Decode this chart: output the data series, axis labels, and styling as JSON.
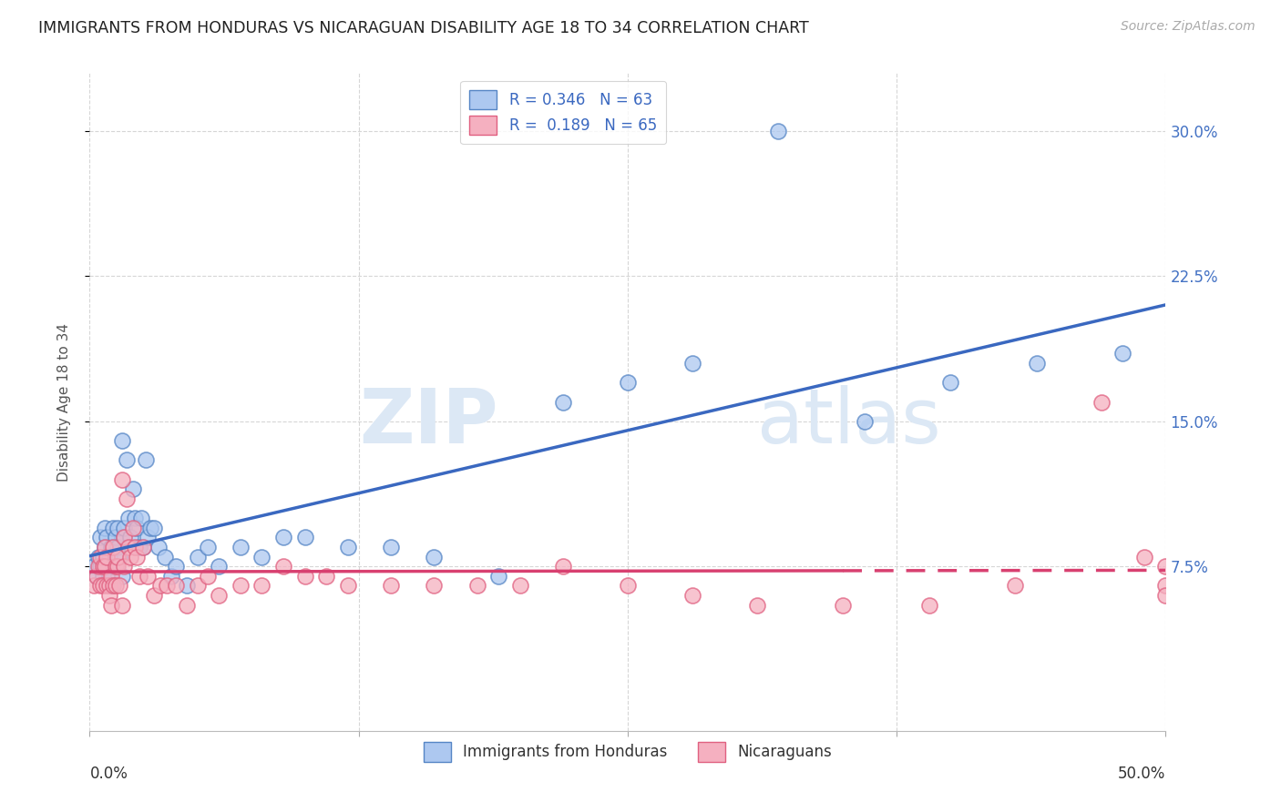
{
  "title": "IMMIGRANTS FROM HONDURAS VS NICARAGUAN DISABILITY AGE 18 TO 34 CORRELATION CHART",
  "source": "Source: ZipAtlas.com",
  "ylabel": "Disability Age 18 to 34",
  "xlim": [
    0.0,
    0.5
  ],
  "ylim": [
    -0.01,
    0.33
  ],
  "yticks": [
    0.075,
    0.15,
    0.225,
    0.3
  ],
  "ytick_labels": [
    "7.5%",
    "15.0%",
    "22.5%",
    "30.0%"
  ],
  "series1_name": "Immigrants from Honduras",
  "series1_R": "0.346",
  "series1_N": "63",
  "series1_color": "#adc8f0",
  "series1_edge_color": "#5585c5",
  "series1_line_color": "#3a68c0",
  "series2_name": "Nicaraguans",
  "series2_R": "0.189",
  "series2_N": "65",
  "series2_color": "#f5b0c0",
  "series2_edge_color": "#e06080",
  "series2_line_color": "#d84070",
  "background_color": "#ffffff",
  "grid_color": "#cccccc",
  "honduras_x": [
    0.002,
    0.003,
    0.004,
    0.005,
    0.005,
    0.006,
    0.006,
    0.007,
    0.007,
    0.008,
    0.008,
    0.009,
    0.009,
    0.01,
    0.01,
    0.011,
    0.011,
    0.012,
    0.012,
    0.013,
    0.013,
    0.014,
    0.015,
    0.015,
    0.016,
    0.016,
    0.017,
    0.018,
    0.019,
    0.02,
    0.021,
    0.022,
    0.023,
    0.024,
    0.025,
    0.026,
    0.027,
    0.028,
    0.03,
    0.032,
    0.035,
    0.038,
    0.04,
    0.045,
    0.05,
    0.055,
    0.06,
    0.07,
    0.08,
    0.09,
    0.1,
    0.12,
    0.14,
    0.16,
    0.19,
    0.22,
    0.25,
    0.28,
    0.32,
    0.36,
    0.4,
    0.44,
    0.48
  ],
  "honduras_y": [
    0.075,
    0.07,
    0.08,
    0.09,
    0.075,
    0.08,
    0.07,
    0.095,
    0.085,
    0.075,
    0.09,
    0.08,
    0.07,
    0.085,
    0.065,
    0.075,
    0.095,
    0.09,
    0.075,
    0.085,
    0.095,
    0.08,
    0.14,
    0.07,
    0.09,
    0.095,
    0.13,
    0.1,
    0.09,
    0.115,
    0.1,
    0.095,
    0.085,
    0.1,
    0.085,
    0.13,
    0.09,
    0.095,
    0.095,
    0.085,
    0.08,
    0.07,
    0.075,
    0.065,
    0.08,
    0.085,
    0.075,
    0.085,
    0.08,
    0.09,
    0.09,
    0.085,
    0.085,
    0.08,
    0.07,
    0.16,
    0.17,
    0.18,
    0.3,
    0.15,
    0.17,
    0.18,
    0.185
  ],
  "nicaragua_x": [
    0.002,
    0.003,
    0.004,
    0.005,
    0.005,
    0.006,
    0.006,
    0.007,
    0.007,
    0.008,
    0.008,
    0.009,
    0.009,
    0.01,
    0.01,
    0.011,
    0.011,
    0.012,
    0.012,
    0.013,
    0.013,
    0.014,
    0.015,
    0.015,
    0.016,
    0.016,
    0.017,
    0.018,
    0.019,
    0.02,
    0.021,
    0.022,
    0.023,
    0.025,
    0.027,
    0.03,
    0.033,
    0.036,
    0.04,
    0.045,
    0.05,
    0.055,
    0.06,
    0.07,
    0.08,
    0.09,
    0.1,
    0.11,
    0.12,
    0.14,
    0.16,
    0.18,
    0.2,
    0.22,
    0.25,
    0.28,
    0.31,
    0.35,
    0.39,
    0.43,
    0.47,
    0.49,
    0.5,
    0.5,
    0.5
  ],
  "nicaragua_y": [
    0.065,
    0.07,
    0.075,
    0.08,
    0.065,
    0.075,
    0.065,
    0.085,
    0.075,
    0.065,
    0.08,
    0.065,
    0.06,
    0.07,
    0.055,
    0.065,
    0.085,
    0.075,
    0.065,
    0.075,
    0.08,
    0.065,
    0.12,
    0.055,
    0.075,
    0.09,
    0.11,
    0.085,
    0.08,
    0.095,
    0.085,
    0.08,
    0.07,
    0.085,
    0.07,
    0.06,
    0.065,
    0.065,
    0.065,
    0.055,
    0.065,
    0.07,
    0.06,
    0.065,
    0.065,
    0.075,
    0.07,
    0.07,
    0.065,
    0.065,
    0.065,
    0.065,
    0.065,
    0.075,
    0.065,
    0.06,
    0.055,
    0.055,
    0.055,
    0.065,
    0.16,
    0.08,
    0.075,
    0.065,
    0.06
  ]
}
